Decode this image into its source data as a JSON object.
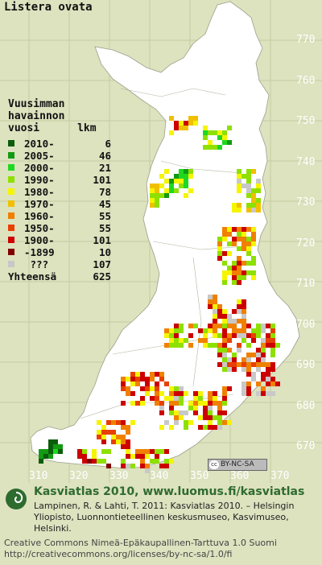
{
  "title": "Listera ovata",
  "legend": {
    "heading": [
      "Vuusimman",
      "havainnon",
      "vuosi      lkm"
    ],
    "rows": [
      {
        "label": "2010-",
        "count": "6",
        "color": "#0b5d0b"
      },
      {
        "label": "2005-",
        "count": "46",
        "color": "#139a13"
      },
      {
        "label": "2000-",
        "count": "21",
        "color": "#1fd81f"
      },
      {
        "label": "1990-",
        "count": "101",
        "color": "#8ee000"
      },
      {
        "label": "1980-",
        "count": "78",
        "color": "#f5f500"
      },
      {
        "label": "1970-",
        "count": "45",
        "color": "#f0c000"
      },
      {
        "label": "1960-",
        "count": "55",
        "color": "#f08000"
      },
      {
        "label": "1950-",
        "count": "55",
        "color": "#e84000"
      },
      {
        "label": "1900-",
        "count": "101",
        "color": "#cc0000"
      },
      {
        "label": "-1899",
        "count": "10",
        "color": "#800000"
      },
      {
        "label": " ???",
        "count": "107",
        "color": "#c8c8c8"
      }
    ],
    "total_label": "Yhteensä",
    "total_count": "625"
  },
  "axes": {
    "y": [
      "770",
      "760",
      "750",
      "740",
      "730",
      "720",
      "710",
      "700",
      "690",
      "680",
      "670"
    ],
    "x": [
      "310",
      "320",
      "330",
      "340",
      "350",
      "360",
      "370"
    ]
  },
  "license_badge": "BY-NC-SA",
  "footer": {
    "line1": "Kasviatlas 2010, www.luomus.fi/kasviatlas",
    "line2": "Lampinen, R. & Lahti, T. 2011: Kasviatlas 2010. – Helsingin Yliopisto, Luonnontieteellinen keskusmuseo, Kasvimuseo, Helsinki.",
    "line3": "Creative Commons Nimeä-Epäkaupallinen-Tarttuva 1.0 Suomi",
    "line4": "http://creativecommons.org/licenses/by-nc-sa/1.0/fi"
  },
  "colors": {
    "background": "#dde2bf",
    "land": "#ffffff",
    "grid": "#c9cfa6",
    "brand_green": "#2e6b2f"
  }
}
